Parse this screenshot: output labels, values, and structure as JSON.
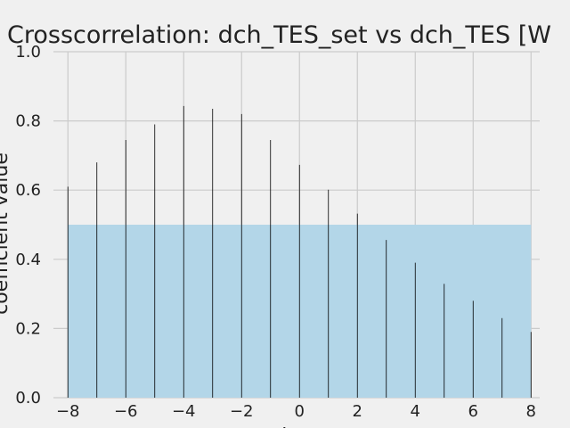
{
  "chart_data": {
    "type": "bar",
    "title": "Crosscorrelation: dch_TES_set vs dch_TES [W",
    "xlabel": "lag",
    "ylabel": "coefficient value",
    "xlim": [
      -8,
      8
    ],
    "ylim": [
      0,
      1.0
    ],
    "x": [
      -8,
      -7,
      -6,
      -5,
      -4,
      -3,
      -2,
      -1,
      0,
      1,
      2,
      3,
      4,
      5,
      6,
      7,
      8
    ],
    "values": [
      0.61,
      0.68,
      0.745,
      0.79,
      0.843,
      0.835,
      0.82,
      0.745,
      0.673,
      0.601,
      0.532,
      0.456,
      0.39,
      0.329,
      0.28,
      0.23,
      0.19
    ],
    "x_ticks": [
      "−8",
      "−6",
      "−4",
      "−2",
      "0",
      "2",
      "4",
      "6",
      "8"
    ],
    "x_tick_values": [
      -8,
      -6,
      -4,
      -2,
      0,
      2,
      4,
      6,
      8
    ],
    "y_ticks": [
      "0.0",
      "0.2",
      "0.4",
      "0.6",
      "0.8",
      "1.0"
    ],
    "y_tick_values": [
      0,
      0.2,
      0.4,
      0.6,
      0.8,
      1.0
    ],
    "threshold_band": {
      "from": 0,
      "to": 0.5,
      "x_range": [
        -8,
        8
      ]
    },
    "grid": true,
    "colors": {
      "bars": "#000000",
      "band": "#b3d6e8",
      "background": "#f0f0f0",
      "grid": "#cbcbcb"
    }
  }
}
